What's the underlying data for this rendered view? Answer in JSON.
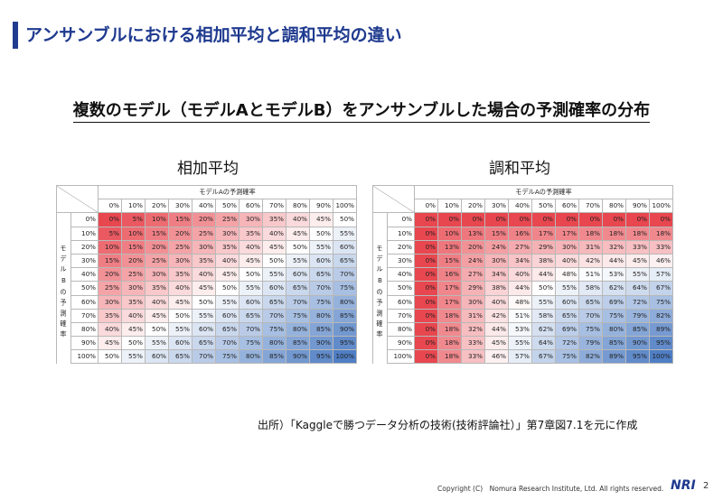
{
  "header": {
    "title": "アンサンブルにおける相加平均と調和平均の違い"
  },
  "subtitle": "複数のモデル（モデルAとモデルB）をアンサンブルした場合の予測確率の分布",
  "tables": {
    "left": {
      "caption": "相加平均",
      "col_header_title": "モデルAの予測確率",
      "row_header_title": "モデルBの予測確率",
      "col_labels": [
        "0%",
        "10%",
        "20%",
        "30%",
        "40%",
        "50%",
        "60%",
        "70%",
        "80%",
        "90%",
        "100%"
      ],
      "row_labels": [
        "0%",
        "10%",
        "20%",
        "30%",
        "40%",
        "50%",
        "60%",
        "70%",
        "80%",
        "90%",
        "100%"
      ],
      "rows": [
        [
          "0%",
          "5%",
          "10%",
          "15%",
          "20%",
          "25%",
          "30%",
          "35%",
          "40%",
          "45%",
          "50%"
        ],
        [
          "5%",
          "10%",
          "15%",
          "20%",
          "25%",
          "30%",
          "35%",
          "40%",
          "45%",
          "50%",
          "55%"
        ],
        [
          "10%",
          "15%",
          "20%",
          "25%",
          "30%",
          "35%",
          "40%",
          "45%",
          "50%",
          "55%",
          "60%"
        ],
        [
          "15%",
          "20%",
          "25%",
          "30%",
          "35%",
          "40%",
          "45%",
          "50%",
          "55%",
          "60%",
          "65%"
        ],
        [
          "20%",
          "25%",
          "30%",
          "35%",
          "40%",
          "45%",
          "50%",
          "55%",
          "60%",
          "65%",
          "70%"
        ],
        [
          "25%",
          "30%",
          "35%",
          "40%",
          "45%",
          "50%",
          "55%",
          "60%",
          "65%",
          "70%",
          "75%"
        ],
        [
          "30%",
          "35%",
          "40%",
          "45%",
          "50%",
          "55%",
          "60%",
          "65%",
          "70%",
          "75%",
          "80%"
        ],
        [
          "35%",
          "40%",
          "45%",
          "50%",
          "55%",
          "60%",
          "65%",
          "70%",
          "75%",
          "80%",
          "85%"
        ],
        [
          "40%",
          "45%",
          "50%",
          "55%",
          "60%",
          "65%",
          "70%",
          "75%",
          "80%",
          "85%",
          "90%"
        ],
        [
          "45%",
          "50%",
          "55%",
          "60%",
          "65%",
          "70%",
          "75%",
          "80%",
          "85%",
          "90%",
          "95%"
        ],
        [
          "50%",
          "55%",
          "60%",
          "65%",
          "70%",
          "75%",
          "80%",
          "85%",
          "90%",
          "95%",
          "100%"
        ]
      ]
    },
    "right": {
      "caption": "調和平均",
      "col_header_title": "モデルAの予測確率",
      "row_header_title": "モデルBの予測確率",
      "col_labels": [
        "0%",
        "10%",
        "20%",
        "30%",
        "40%",
        "50%",
        "60%",
        "70%",
        "80%",
        "90%",
        "100%"
      ],
      "row_labels": [
        "0%",
        "10%",
        "20%",
        "30%",
        "40%",
        "50%",
        "60%",
        "70%",
        "80%",
        "90%",
        "100%"
      ],
      "rows": [
        [
          "0%",
          "0%",
          "0%",
          "0%",
          "0%",
          "0%",
          "0%",
          "0%",
          "0%",
          "0%",
          "0%"
        ],
        [
          "0%",
          "10%",
          "13%",
          "15%",
          "16%",
          "17%",
          "17%",
          "18%",
          "18%",
          "18%",
          "18%"
        ],
        [
          "0%",
          "13%",
          "20%",
          "24%",
          "27%",
          "29%",
          "30%",
          "31%",
          "32%",
          "33%",
          "33%"
        ],
        [
          "0%",
          "15%",
          "24%",
          "30%",
          "34%",
          "38%",
          "40%",
          "42%",
          "44%",
          "45%",
          "46%"
        ],
        [
          "0%",
          "16%",
          "27%",
          "34%",
          "40%",
          "44%",
          "48%",
          "51%",
          "53%",
          "55%",
          "57%"
        ],
        [
          "0%",
          "17%",
          "29%",
          "38%",
          "44%",
          "50%",
          "55%",
          "58%",
          "62%",
          "64%",
          "67%"
        ],
        [
          "0%",
          "17%",
          "30%",
          "40%",
          "48%",
          "55%",
          "60%",
          "65%",
          "69%",
          "72%",
          "75%"
        ],
        [
          "0%",
          "18%",
          "31%",
          "42%",
          "51%",
          "58%",
          "65%",
          "70%",
          "75%",
          "79%",
          "82%"
        ],
        [
          "0%",
          "18%",
          "32%",
          "44%",
          "53%",
          "62%",
          "69%",
          "75%",
          "80%",
          "85%",
          "89%"
        ],
        [
          "0%",
          "18%",
          "33%",
          "45%",
          "55%",
          "64%",
          "72%",
          "79%",
          "85%",
          "90%",
          "95%"
        ],
        [
          "0%",
          "18%",
          "33%",
          "46%",
          "57%",
          "67%",
          "75%",
          "82%",
          "89%",
          "95%",
          "100%"
        ]
      ]
    }
  },
  "footnote": "出所）「Kaggleで勝つデータ分析の技術(技術評論社）」第7章図7.1を元に作成",
  "footer": {
    "copyright": "Copyright (C)　Nomura Research Institute, Ltd. All rights reserved.",
    "logo": "NRI",
    "page": "2"
  },
  "colors": {
    "low": "#e8474f",
    "mid": "#ffffff",
    "high": "#4f7ec4",
    "title": "#1f3a8f"
  }
}
